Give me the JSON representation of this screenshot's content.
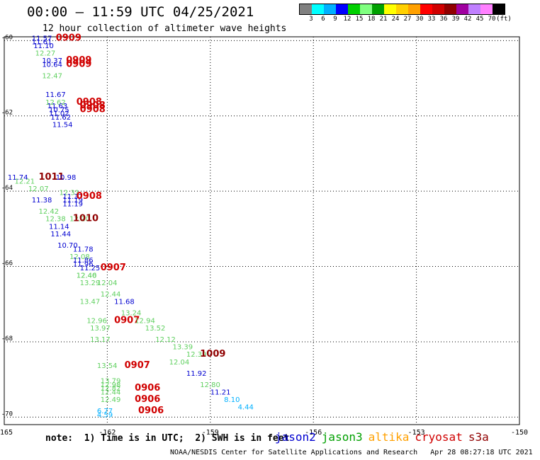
{
  "header": {
    "title": "00:00 – 11:59 UTC 04/25/2021",
    "subtitle": "12 hour collection of altimeter wave heights"
  },
  "legend": {
    "colors": [
      "#808080",
      "#00ffff",
      "#00b0ff",
      "#0000ff",
      "#00d000",
      "#80ff80",
      "#00a000",
      "#ffff00",
      "#ffd000",
      "#ffa000",
      "#ff0000",
      "#d00000",
      "#900000",
      "#a000a0",
      "#c080ff",
      "#ff80ff",
      "#000000"
    ],
    "labels": [
      "3",
      "6",
      "9",
      "12",
      "15",
      "18",
      "21",
      "24",
      "27",
      "30",
      "33",
      "36",
      "39",
      "42",
      "45",
      "70",
      "(ft)"
    ]
  },
  "notes": {
    "note": "note:  1) Time is in UTC;  2) SWH is in feet",
    "footer_org": "NOAA/NESDIS Center for Satellite Applications and Research",
    "footer_time": "Apr 28 08:27:18 UTC 2021"
  },
  "satellites": [
    {
      "name": "jason2",
      "color": "#0000d0"
    },
    {
      "name": "jason3",
      "color": "#00a000"
    },
    {
      "name": "altika",
      "color": "#ffa000"
    },
    {
      "name": "cryosat",
      "color": "#d00000"
    },
    {
      "name": "s3a",
      "color": "#900000"
    }
  ],
  "chart_data": {
    "type": "scatter",
    "title": "",
    "xlabel": "",
    "ylabel": "",
    "xlim": [
      -165,
      -150
    ],
    "ylim": [
      -70.2,
      -59.9
    ],
    "x_ticks": [
      -165,
      -162,
      -159,
      -156,
      -153,
      -150
    ],
    "x_tick_labels": [
      "-165",
      "-162",
      "-159",
      "-156",
      "-153",
      "-150"
    ],
    "y_ticks": [
      -60,
      -62,
      -64,
      -66,
      -68,
      -70
    ],
    "y_tick_labels": [
      "-60",
      "-62",
      "-64",
      "-66",
      "-68",
      "-70"
    ],
    "grid": true,
    "points": [
      {
        "lon": -164.2,
        "lat": -60.0,
        "text": "11.57",
        "color": "#0000d0"
      },
      {
        "lon": -164.2,
        "lat": -60.1,
        "text": "11.61",
        "color": "#0000d0"
      },
      {
        "lon": -164.15,
        "lat": -60.2,
        "text": "11.10",
        "color": "#0000d0"
      },
      {
        "lon": -164.1,
        "lat": -60.4,
        "text": "12.27",
        "color": "#60d060"
      },
      {
        "lon": -163.5,
        "lat": -60.0,
        "text": "0909",
        "color": "#d00000",
        "big": true
      },
      {
        "lon": -163.9,
        "lat": -60.6,
        "text": "10.37",
        "color": "#0000d0"
      },
      {
        "lon": -163.9,
        "lat": -60.7,
        "text": "10.64",
        "color": "#0000d0"
      },
      {
        "lon": -163.2,
        "lat": -60.6,
        "text": "0909",
        "color": "#d00000",
        "big": true
      },
      {
        "lon": -163.2,
        "lat": -60.7,
        "text": "0909",
        "color": "#d00000",
        "big": true
      },
      {
        "lon": -163.9,
        "lat": -61.0,
        "text": "12.47",
        "color": "#60d060"
      },
      {
        "lon": -163.8,
        "lat": -61.5,
        "text": "11.67",
        "color": "#0000d0"
      },
      {
        "lon": -163.8,
        "lat": -61.7,
        "text": "12.62",
        "color": "#60d060"
      },
      {
        "lon": -163.75,
        "lat": -61.8,
        "text": "11.63",
        "color": "#0000d0"
      },
      {
        "lon": -163.7,
        "lat": -61.9,
        "text": "10.75",
        "color": "#0000d0"
      },
      {
        "lon": -163.7,
        "lat": -62.0,
        "text": "11.02",
        "color": "#0000d0"
      },
      {
        "lon": -163.65,
        "lat": -62.1,
        "text": "11.62",
        "color": "#0000d0"
      },
      {
        "lon": -163.6,
        "lat": -62.3,
        "text": "11.54",
        "color": "#0000d0"
      },
      {
        "lon": -162.9,
        "lat": -61.7,
        "text": "0908",
        "color": "#d00000",
        "big": true
      },
      {
        "lon": -162.8,
        "lat": -61.8,
        "text": "0908",
        "color": "#d00000",
        "big": true
      },
      {
        "lon": -162.8,
        "lat": -61.9,
        "text": "0908",
        "color": "#d00000",
        "big": true
      },
      {
        "lon": -164.9,
        "lat": -63.7,
        "text": "11.74",
        "color": "#0000d0"
      },
      {
        "lon": -164.7,
        "lat": -63.8,
        "text": "12.21",
        "color": "#60d060"
      },
      {
        "lon": -164.3,
        "lat": -64.0,
        "text": "12.07",
        "color": "#60d060"
      },
      {
        "lon": -164.2,
        "lat": -64.3,
        "text": "11.38",
        "color": "#0000d0"
      },
      {
        "lon": -164.0,
        "lat": -64.6,
        "text": "12.42",
        "color": "#60d060"
      },
      {
        "lon": -163.8,
        "lat": -64.8,
        "text": "12.38",
        "color": "#60d060"
      },
      {
        "lon": -163.7,
        "lat": -65.0,
        "text": "11.14",
        "color": "#0000d0"
      },
      {
        "lon": -163.65,
        "lat": -65.2,
        "text": "11.44",
        "color": "#0000d0"
      },
      {
        "lon": -163.45,
        "lat": -65.5,
        "text": "10.70",
        "color": "#0000d0"
      },
      {
        "lon": -164.0,
        "lat": -63.7,
        "text": "1011",
        "color": "#900000",
        "big": true
      },
      {
        "lon": -163.5,
        "lat": -63.7,
        "text": "10.98",
        "color": "#0000d0"
      },
      {
        "lon": -163.4,
        "lat": -64.1,
        "text": "12.31",
        "color": "#60d060"
      },
      {
        "lon": -163.3,
        "lat": -64.2,
        "text": "11.37",
        "color": "#0000d0"
      },
      {
        "lon": -163.3,
        "lat": -64.3,
        "text": "11.19",
        "color": "#0000d0"
      },
      {
        "lon": -163.3,
        "lat": -64.4,
        "text": "11.19",
        "color": "#0000d0"
      },
      {
        "lon": -162.9,
        "lat": -64.2,
        "text": "0908",
        "color": "#d00000",
        "big": true
      },
      {
        "lon": -163.1,
        "lat": -64.8,
        "text": "12.20",
        "color": "#60d060"
      },
      {
        "lon": -163.0,
        "lat": -64.8,
        "text": "1010",
        "color": "#900000",
        "big": true
      },
      {
        "lon": -163.0,
        "lat": -65.6,
        "text": "11.78",
        "color": "#0000d0"
      },
      {
        "lon": -163.1,
        "lat": -65.8,
        "text": "12.08",
        "color": "#60d060"
      },
      {
        "lon": -163.0,
        "lat": -65.9,
        "text": "11.86",
        "color": "#0000d0"
      },
      {
        "lon": -163.0,
        "lat": -66.0,
        "text": "11.96",
        "color": "#0000d0"
      },
      {
        "lon": -162.8,
        "lat": -66.1,
        "text": "11.25",
        "color": "#0000d0"
      },
      {
        "lon": -162.9,
        "lat": -66.3,
        "text": "12.46",
        "color": "#60d060"
      },
      {
        "lon": -162.9,
        "lat": -66.3,
        "text": "12.40",
        "color": "#60d060"
      },
      {
        "lon": -162.8,
        "lat": -66.5,
        "text": "13.29",
        "color": "#60d060"
      },
      {
        "lon": -162.3,
        "lat": -66.5,
        "text": "12.04",
        "color": "#60d060"
      },
      {
        "lon": -162.2,
        "lat": -66.1,
        "text": "0907",
        "color": "#d00000",
        "big": true
      },
      {
        "lon": -162.2,
        "lat": -66.8,
        "text": "12.44",
        "color": "#60d060"
      },
      {
        "lon": -162.8,
        "lat": -67.0,
        "text": "13.47",
        "color": "#60d060"
      },
      {
        "lon": -161.8,
        "lat": -67.0,
        "text": "11.68",
        "color": "#0000d0"
      },
      {
        "lon": -161.6,
        "lat": -67.3,
        "text": "13.24",
        "color": "#60d060"
      },
      {
        "lon": -162.6,
        "lat": -67.5,
        "text": "12.96",
        "color": "#60d060"
      },
      {
        "lon": -161.8,
        "lat": -67.5,
        "text": "0907",
        "color": "#d00000",
        "big": true
      },
      {
        "lon": -161.2,
        "lat": -67.5,
        "text": "12.94",
        "color": "#60d060"
      },
      {
        "lon": -162.5,
        "lat": -67.7,
        "text": "13.97",
        "color": "#60d060"
      },
      {
        "lon": -160.9,
        "lat": -67.7,
        "text": "13.52",
        "color": "#60d060"
      },
      {
        "lon": -160.6,
        "lat": -68.0,
        "text": "12.12",
        "color": "#60d060"
      },
      {
        "lon": -162.5,
        "lat": -68.0,
        "text": "13.17",
        "color": "#60d060"
      },
      {
        "lon": -160.1,
        "lat": -68.2,
        "text": "13.39",
        "color": "#60d060"
      },
      {
        "lon": -159.7,
        "lat": -68.4,
        "text": "12.39",
        "color": "#60d060"
      },
      {
        "lon": -159.3,
        "lat": -68.4,
        "text": "1009",
        "color": "#900000",
        "big": true
      },
      {
        "lon": -160.2,
        "lat": -68.6,
        "text": "12.04",
        "color": "#60d060"
      },
      {
        "lon": -162.3,
        "lat": -68.7,
        "text": "13.54",
        "color": "#60d060"
      },
      {
        "lon": -161.5,
        "lat": -68.7,
        "text": "0907",
        "color": "#d00000",
        "big": true
      },
      {
        "lon": -159.7,
        "lat": -68.9,
        "text": "11.92",
        "color": "#0000d0"
      },
      {
        "lon": -159.3,
        "lat": -69.2,
        "text": "12.80",
        "color": "#60d060"
      },
      {
        "lon": -162.2,
        "lat": -69.1,
        "text": "13.79",
        "color": "#60d060"
      },
      {
        "lon": -162.2,
        "lat": -69.2,
        "text": "12.98",
        "color": "#60d060"
      },
      {
        "lon": -162.2,
        "lat": -69.3,
        "text": "12.82",
        "color": "#60d060"
      },
      {
        "lon": -162.2,
        "lat": -69.4,
        "text": "12.44",
        "color": "#60d060"
      },
      {
        "lon": -161.2,
        "lat": -69.3,
        "text": "0906",
        "color": "#d00000",
        "big": true
      },
      {
        "lon": -159.0,
        "lat": -69.4,
        "text": "11.21",
        "color": "#0000d0"
      },
      {
        "lon": -162.2,
        "lat": -69.6,
        "text": "12.49",
        "color": "#60d060"
      },
      {
        "lon": -161.2,
        "lat": -69.6,
        "text": "0906",
        "color": "#d00000",
        "big": true
      },
      {
        "lon": -158.6,
        "lat": -69.6,
        "text": "8.10",
        "color": "#00b0ff"
      },
      {
        "lon": -158.2,
        "lat": -69.8,
        "text": "4.44",
        "color": "#00b0ff"
      },
      {
        "lon": -162.3,
        "lat": -69.9,
        "text": "6.77",
        "color": "#00b0ff"
      },
      {
        "lon": -162.3,
        "lat": -70.0,
        "text": "4.59",
        "color": "#00b0ff"
      },
      {
        "lon": -161.1,
        "lat": -69.9,
        "text": "0906",
        "color": "#d00000",
        "big": true
      }
    ]
  }
}
